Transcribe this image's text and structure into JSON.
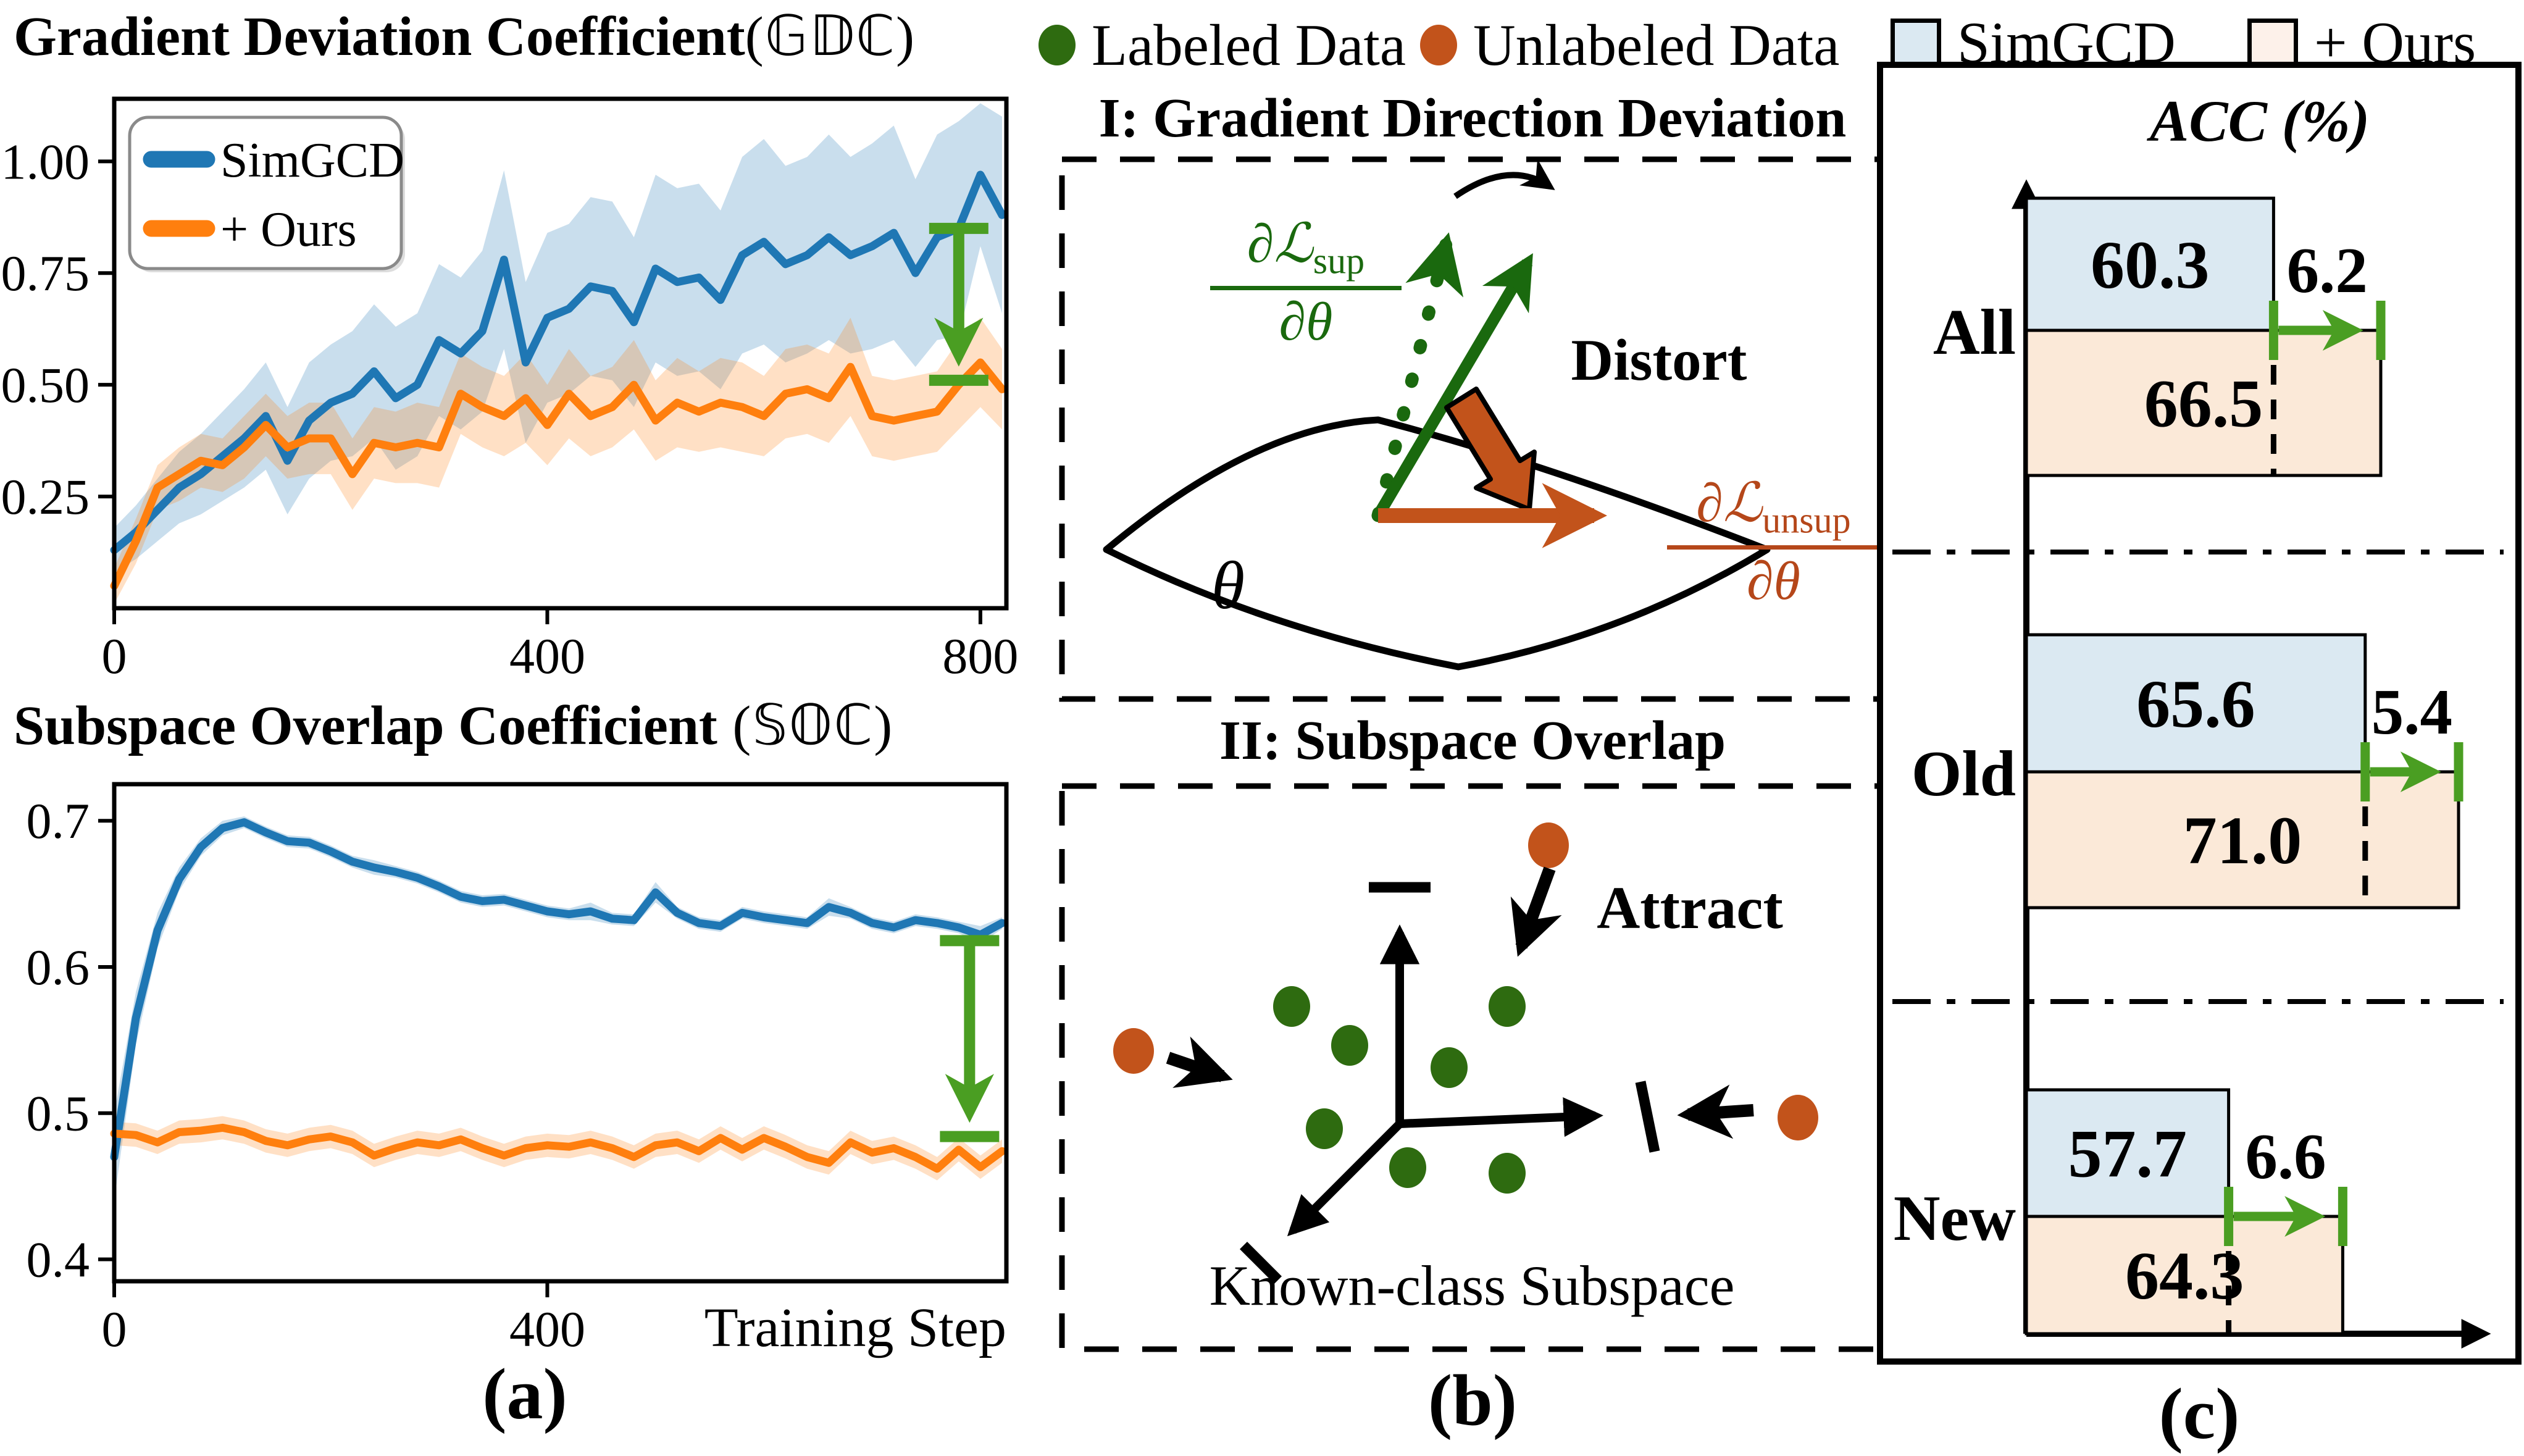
{
  "figure": {
    "captions": {
      "a": "(a)",
      "b": "(b)",
      "c": "(c)"
    }
  },
  "colors": {
    "line_blue": "#1f77b4",
    "line_orange": "#ff7f0e",
    "annot_green": "#4a9e22",
    "bar_blue": "#dbe9f2",
    "bar_peach": "#fbe9d8",
    "legend_peach": "#fdf1ea",
    "dot_green": "#2e6b10",
    "dot_orange": "#c2531b",
    "grad_green": "#1a690e",
    "grad_orange": "#b5471a",
    "black": "#000000"
  },
  "top_legend": {
    "items": [
      {
        "label": "Labeled Data",
        "marker": "dot",
        "color": "#2e6b10"
      },
      {
        "label": "Unlabeled Data",
        "marker": "dot",
        "color": "#c2531b"
      },
      {
        "label": "SimGCD",
        "marker": "square",
        "color": "#dbe9f2"
      },
      {
        "label": "+ Ours",
        "marker": "square",
        "color": "#fdf1ea"
      }
    ]
  },
  "chart_data": [
    {
      "id": "gdc",
      "type": "line",
      "title": "Gradient Deviation Coefficient",
      "title_math": "(𝔾𝔻ℂ)",
      "xlabel": "",
      "ylabel": "",
      "xlim": [
        0,
        824
      ],
      "ylim": [
        0,
        1.14
      ],
      "x_start": 0,
      "x_step": 20,
      "xticks": [
        0,
        400,
        800
      ],
      "yticks": [
        0.25,
        0.5,
        0.75,
        1.0
      ],
      "ytick_labels": [
        "0.25",
        "0.50",
        "0.75",
        "1.00"
      ],
      "legend_labels": [
        "SimGCD",
        "+ Ours"
      ],
      "legend_position": "upper-left",
      "grid": false,
      "series": [
        {
          "name": "SimGCD",
          "color": "#1f77b4",
          "values": [
            0.13,
            0.17,
            0.22,
            0.27,
            0.3,
            0.34,
            0.38,
            0.43,
            0.33,
            0.42,
            0.46,
            0.48,
            0.53,
            0.47,
            0.5,
            0.6,
            0.57,
            0.62,
            0.78,
            0.55,
            0.65,
            0.67,
            0.72,
            0.71,
            0.64,
            0.76,
            0.73,
            0.74,
            0.69,
            0.79,
            0.82,
            0.77,
            0.79,
            0.83,
            0.79,
            0.81,
            0.84,
            0.75,
            0.83,
            0.85,
            0.97,
            0.88
          ],
          "spread": [
            0.05,
            0.06,
            0.07,
            0.08,
            0.09,
            0.1,
            0.11,
            0.12,
            0.12,
            0.13,
            0.13,
            0.14,
            0.15,
            0.16,
            0.16,
            0.17,
            0.17,
            0.18,
            0.2,
            0.18,
            0.19,
            0.19,
            0.2,
            0.2,
            0.19,
            0.21,
            0.21,
            0.21,
            0.2,
            0.22,
            0.23,
            0.22,
            0.22,
            0.23,
            0.22,
            0.23,
            0.24,
            0.21,
            0.23,
            0.24,
            0.16,
            0.22
          ]
        },
        {
          "name": "+ Ours",
          "color": "#ff7f0e",
          "values": [
            0.05,
            0.15,
            0.27,
            0.3,
            0.33,
            0.32,
            0.36,
            0.41,
            0.36,
            0.38,
            0.38,
            0.3,
            0.37,
            0.36,
            0.37,
            0.36,
            0.48,
            0.45,
            0.43,
            0.47,
            0.41,
            0.48,
            0.43,
            0.45,
            0.5,
            0.42,
            0.46,
            0.44,
            0.46,
            0.45,
            0.43,
            0.48,
            0.49,
            0.47,
            0.54,
            0.43,
            0.42,
            0.43,
            0.44,
            0.5,
            0.55,
            0.49
          ],
          "spread": [
            0.04,
            0.05,
            0.05,
            0.06,
            0.06,
            0.06,
            0.07,
            0.07,
            0.07,
            0.08,
            0.08,
            0.08,
            0.08,
            0.08,
            0.09,
            0.09,
            0.09,
            0.09,
            0.09,
            0.1,
            0.09,
            0.1,
            0.09,
            0.09,
            0.1,
            0.09,
            0.1,
            0.09,
            0.1,
            0.1,
            0.09,
            0.1,
            0.1,
            0.1,
            0.11,
            0.09,
            0.09,
            0.09,
            0.09,
            0.1,
            0.1,
            0.09
          ]
        }
      ],
      "annotation": {
        "x": 780,
        "y_from": 0.85,
        "y_to": 0.51,
        "color": "#4a9e22"
      }
    },
    {
      "id": "soc",
      "type": "line",
      "title": "Subspace Overlap Coefficient",
      "title_math": " (𝕊𝕆ℂ)",
      "xlabel": "Training Step",
      "ylabel": "",
      "xlim": [
        0,
        824
      ],
      "ylim": [
        0.385,
        0.725
      ],
      "x_start": 0,
      "x_step": 20,
      "xticks": [
        0,
        400
      ],
      "yticks": [
        0.4,
        0.5,
        0.6,
        0.7
      ],
      "ytick_labels": [
        "0.4",
        "0.5",
        "0.6",
        "0.7"
      ],
      "legend_labels": null,
      "grid": false,
      "series": [
        {
          "name": "SimGCD",
          "color": "#1f77b4",
          "values": [
            0.47,
            0.565,
            0.625,
            0.66,
            0.682,
            0.695,
            0.699,
            0.692,
            0.686,
            0.685,
            0.679,
            0.672,
            0.668,
            0.665,
            0.661,
            0.655,
            0.648,
            0.645,
            0.646,
            0.642,
            0.638,
            0.636,
            0.638,
            0.633,
            0.632,
            0.651,
            0.637,
            0.63,
            0.628,
            0.637,
            0.634,
            0.632,
            0.63,
            0.641,
            0.637,
            0.63,
            0.627,
            0.632,
            0.63,
            0.627,
            0.622,
            0.63
          ],
          "spread": [
            0.03,
            0.018,
            0.012,
            0.008,
            0.006,
            0.005,
            0.004,
            0.004,
            0.004,
            0.004,
            0.004,
            0.004,
            0.005,
            0.004,
            0.004,
            0.004,
            0.004,
            0.004,
            0.004,
            0.004,
            0.004,
            0.004,
            0.006,
            0.004,
            0.004,
            0.007,
            0.004,
            0.004,
            0.004,
            0.004,
            0.004,
            0.004,
            0.004,
            0.006,
            0.004,
            0.004,
            0.004,
            0.004,
            0.004,
            0.004,
            0.006,
            0.004
          ]
        },
        {
          "name": "+ Ours",
          "color": "#ff7f0e",
          "values": [
            0.486,
            0.485,
            0.48,
            0.487,
            0.488,
            0.49,
            0.487,
            0.481,
            0.478,
            0.482,
            0.484,
            0.48,
            0.471,
            0.476,
            0.48,
            0.478,
            0.482,
            0.476,
            0.471,
            0.476,
            0.478,
            0.477,
            0.48,
            0.476,
            0.47,
            0.478,
            0.48,
            0.474,
            0.483,
            0.475,
            0.483,
            0.477,
            0.47,
            0.466,
            0.48,
            0.473,
            0.476,
            0.47,
            0.462,
            0.475,
            0.463,
            0.474
          ],
          "spread": 0.008
        }
      ],
      "annotation": {
        "x": 790,
        "y_from": 0.618,
        "y_to": 0.484,
        "color": "#4a9e22"
      }
    },
    {
      "id": "acc",
      "type": "bar",
      "title": "ACC (%)",
      "orientation": "horizontal",
      "categories": [
        "All",
        "Old",
        "New"
      ],
      "series": [
        {
          "name": "SimGCD",
          "fill": "#dbe9f2",
          "values": [
            60.3,
            65.6,
            57.7
          ]
        },
        {
          "name": "+ Ours",
          "fill": "#fbe9d8",
          "values": [
            66.5,
            71.0,
            64.3
          ]
        }
      ],
      "gains": [
        6.2,
        5.4,
        6.6
      ],
      "gain_color": "#4a9e22",
      "legend_position": "top"
    }
  ],
  "diagram_1": {
    "heading": "I: Gradient Direction Deviation",
    "sup_num": "∂ℒ",
    "sup_sub": "sup",
    "sup_den": "∂θ",
    "unsup_num": "∂ℒ",
    "unsup_sub": "unsup",
    "unsup_den": "∂θ",
    "distort": "Distort",
    "theta": "θ"
  },
  "diagram_2": {
    "heading": "II: Subspace Overlap",
    "attract": "Attract",
    "subspace_label": "Known-class Subspace"
  }
}
